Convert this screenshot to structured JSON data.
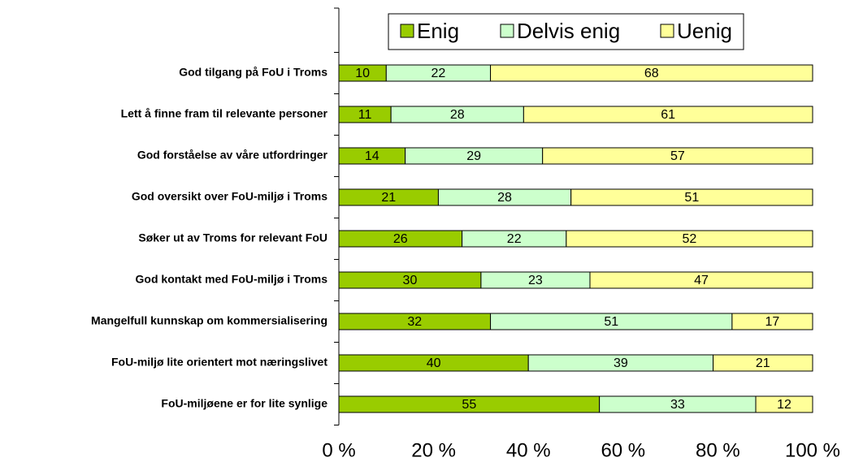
{
  "chart_data": {
    "type": "stacked-bar-horizontal",
    "categories": [
      "God tilgang på FoU i Troms",
      "Lett å finne fram til relevante personer",
      "God forståelse av våre utfordringer",
      "God oversikt over FoU-miljø i Troms",
      "Søker ut av Troms for relevant FoU",
      "God kontakt med FoU-miljø i Troms",
      "Mangelfull kunnskap om kommersialisering",
      "FoU-miljø lite orientert mot næringslivet",
      "FoU-miljøene er for lite synlige"
    ],
    "series": [
      {
        "name": "Enig",
        "color": "#99cc00",
        "values": [
          10,
          11,
          14,
          21,
          26,
          30,
          32,
          40,
          55
        ]
      },
      {
        "name": "Delvis enig",
        "color": "#ccffcc",
        "values": [
          22,
          28,
          29,
          28,
          22,
          23,
          51,
          39,
          33
        ]
      },
      {
        "name": "Uenig",
        "color": "#ffff99",
        "values": [
          68,
          61,
          57,
          51,
          52,
          47,
          17,
          21,
          12
        ]
      }
    ],
    "xlim": [
      0,
      100
    ],
    "xticks": [
      {
        "value": 0,
        "label": "0 %"
      },
      {
        "value": 20,
        "label": "20 %"
      },
      {
        "value": 40,
        "label": "40 %"
      },
      {
        "value": 60,
        "label": "60 %"
      },
      {
        "value": 80,
        "label": "80 %"
      },
      {
        "value": 100,
        "label": "100 %"
      }
    ],
    "legend": "top"
  }
}
